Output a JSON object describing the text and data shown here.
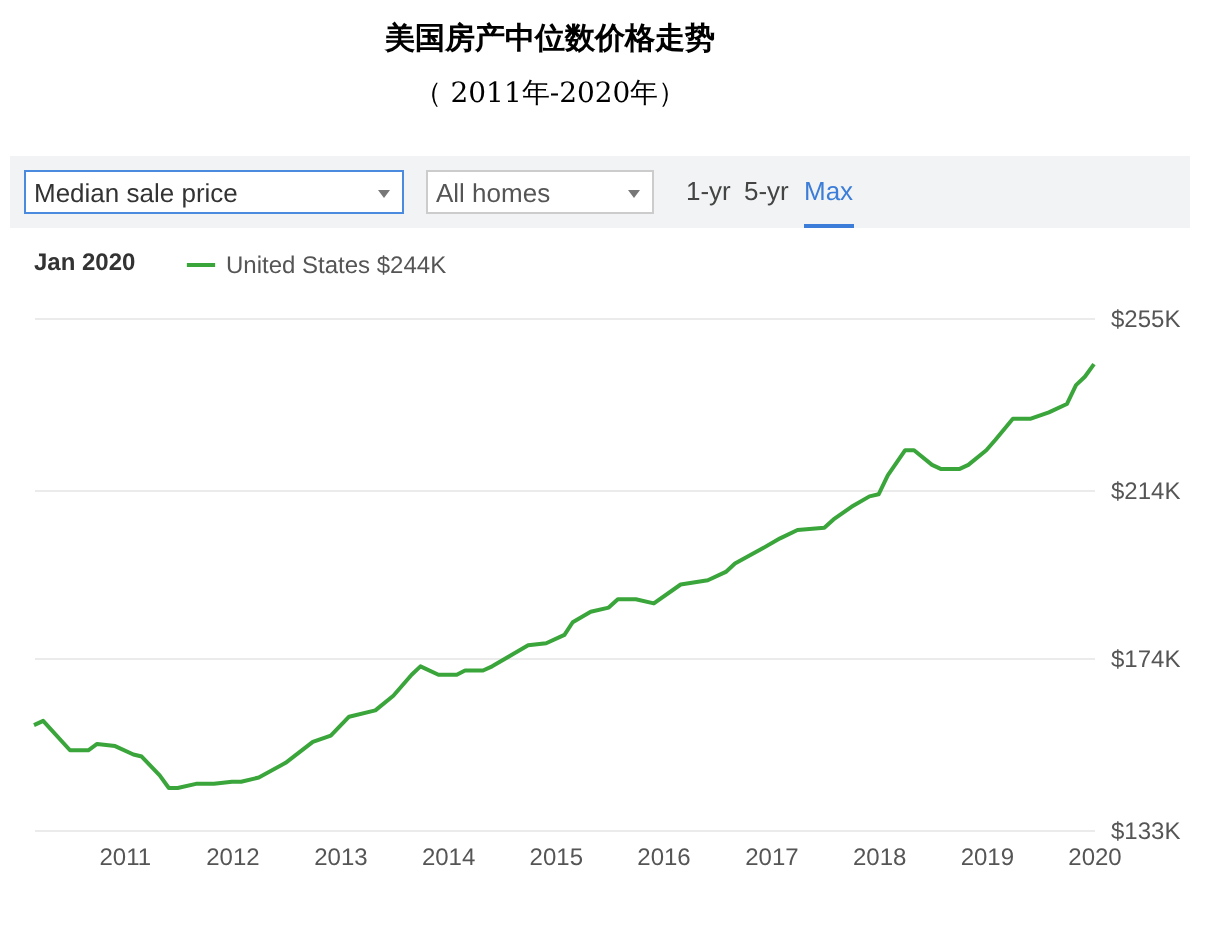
{
  "chart_data": {
    "type": "line",
    "title": "美国房产中位数价格走势",
    "subtitle": "（ 2011年-2020年）",
    "annotations": [
      "Median sale price",
      "All homes",
      "1-yr",
      "5-yr",
      "Max"
    ],
    "legend_title": "Jan 2020",
    "legend": "top",
    "grid": "y",
    "x": [
      "2010-03",
      "2010-04",
      "2010-07",
      "2010-09",
      "2010-10",
      "2010-12",
      "2011-02",
      "2011-03",
      "2011-05",
      "2011-06",
      "2011-07",
      "2011-09",
      "2011-11",
      "2012-01",
      "2012-02",
      "2012-04",
      "2012-07",
      "2012-10",
      "2012-12",
      "2013-02",
      "2013-05",
      "2013-07",
      "2013-09",
      "2013-10",
      "2013-12",
      "2014-02",
      "2014-03",
      "2014-05",
      "2014-06",
      "2014-08",
      "2014-10",
      "2014-12",
      "2015-02",
      "2015-03",
      "2015-05",
      "2015-07",
      "2015-08",
      "2015-10",
      "2015-12",
      "2016-03",
      "2016-06",
      "2016-08",
      "2016-09",
      "2016-12",
      "2017-02",
      "2017-04",
      "2017-07",
      "2017-08",
      "2017-10",
      "2017-12",
      "2018-01",
      "2018-02",
      "2018-04",
      "2018-05",
      "2018-07",
      "2018-08",
      "2018-10",
      "2018-11",
      "2019-01",
      "2019-02",
      "2019-04",
      "2019-06",
      "2019-08",
      "2019-10",
      "2019-11",
      "2019-12",
      "2020-01"
    ],
    "series": [
      {
        "name": "United States $244K",
        "color": "#3aa53a",
        "values": [
          158,
          159,
          152,
          152,
          153.5,
          153,
          151,
          150.5,
          146,
          143,
          143,
          144,
          144,
          144.5,
          144.5,
          145.5,
          149,
          154,
          155.5,
          160,
          161.5,
          165,
          170,
          172,
          170,
          170,
          171,
          171,
          172,
          174.5,
          177,
          177.5,
          179.5,
          182.5,
          185,
          186,
          188,
          188,
          187,
          191.5,
          192.5,
          194.5,
          196.5,
          200,
          202.5,
          204.5,
          205,
          207,
          210,
          212.5,
          213,
          217.5,
          223.5,
          223.5,
          220,
          219,
          219,
          220,
          223.5,
          226,
          231,
          231,
          232.5,
          234.5,
          239,
          241,
          244
        ]
      }
    ],
    "xlim": [
      "2010-03",
      "2020-01"
    ],
    "xticks": [
      "2011",
      "2012",
      "2013",
      "2014",
      "2015",
      "2016",
      "2017",
      "2018",
      "2019",
      "2020"
    ],
    "ylim": [
      133,
      255
    ],
    "yticks": [
      {
        "value": 133,
        "label": "$133K"
      },
      {
        "value": 174,
        "label": "$174K"
      },
      {
        "value": 214,
        "label": "$214K"
      },
      {
        "value": 255,
        "label": "$255K"
      }
    ]
  }
}
